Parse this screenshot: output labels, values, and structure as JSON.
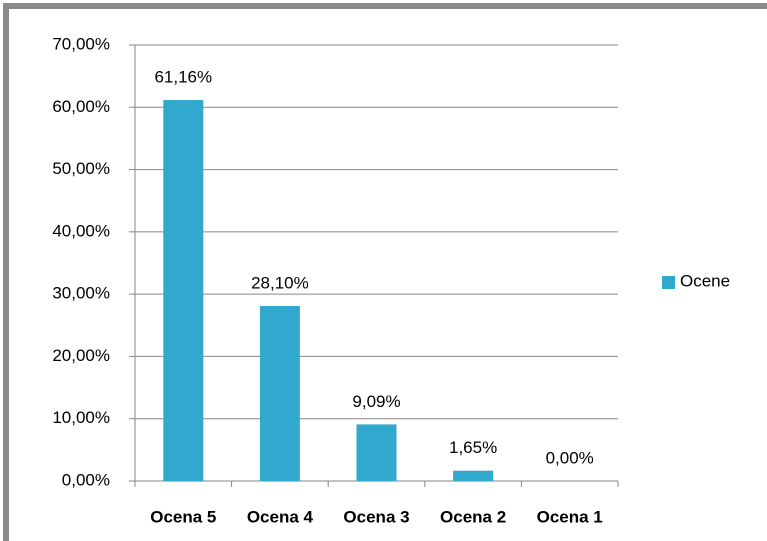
{
  "chart_data": {
    "type": "bar",
    "categories": [
      "Ocena 5",
      "Ocena 4",
      "Ocena 3",
      "Ocena 2",
      "Ocena 1"
    ],
    "series": [
      {
        "name": "Ocene",
        "color": "#31a9cf",
        "values": [
          61.16,
          28.1,
          9.09,
          1.65,
          0.0
        ],
        "value_labels": [
          "61,16%",
          "28,10%",
          "9,09%",
          "1,65%",
          "0,00%"
        ]
      }
    ],
    "ylim": [
      0,
      70
    ],
    "yticks": [
      {
        "value": 0,
        "label": "0,00%"
      },
      {
        "value": 10,
        "label": "10,00%"
      },
      {
        "value": 20,
        "label": "20,00%"
      },
      {
        "value": 30,
        "label": "30,00%"
      },
      {
        "value": 40,
        "label": "40,00%"
      },
      {
        "value": 50,
        "label": "50,00%"
      },
      {
        "value": 60,
        "label": "60,00%"
      },
      {
        "value": 70,
        "label": "70,00%"
      }
    ],
    "grid": true,
    "legend": "right"
  }
}
